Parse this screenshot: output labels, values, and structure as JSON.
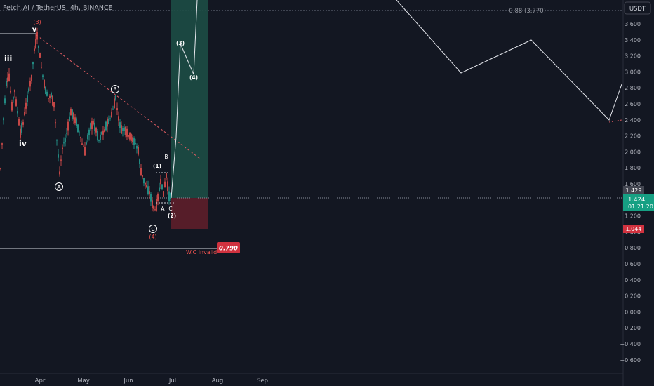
{
  "header": {
    "title": "Fetch.AI / TetherUS, 4h, BINANCE"
  },
  "currency_button": {
    "label": "USDT"
  },
  "price_axis": {
    "ticks": [
      "3.600",
      "3.400",
      "3.200",
      "3.000",
      "2.800",
      "2.600",
      "2.400",
      "2.200",
      "2.000",
      "1.800",
      "1.600",
      "1.400",
      "1.200",
      "1.000",
      "0.800",
      "0.600",
      "0.400",
      "0.200",
      "0.000",
      "−0.200",
      "−0.400",
      "−0.600"
    ]
  },
  "price_tags": {
    "level_1429": "1.429",
    "last_price": "1.424",
    "countdown": "01:21:20",
    "stop_level": "1.044"
  },
  "time_axis": {
    "labels": [
      "Apr",
      "May",
      "Jun",
      "Jul",
      "Aug",
      "Sep"
    ]
  },
  "annotations": {
    "fib_label": "0.88 (3.770)",
    "invalid_label": "W.C Invalid",
    "invalid_price": "0.790",
    "wave_iii": "iii",
    "wave_iv": "iv",
    "wave_v": "v",
    "wave_3_red": "(3)",
    "wave_4_red": "(4)",
    "wave_A": "A",
    "wave_B": "B",
    "wave_C": "C",
    "sub_1": "(1)",
    "sub_2": "(2)",
    "sub_3": "(3)",
    "sub_4": "(4)",
    "small_a": "A",
    "small_b": "B",
    "small_c": "C"
  },
  "colors": {
    "background": "#131722",
    "axis_text": "#b2b5be",
    "candle_up": "#26a69a",
    "candle_down": "#ef5350",
    "profit_zone": "#1d4c45",
    "loss_zone": "#5a1e2a",
    "invalid_tag": "#d1323f",
    "last_price_tag": "#16a083",
    "dashed_trend": "#e05c62"
  }
}
